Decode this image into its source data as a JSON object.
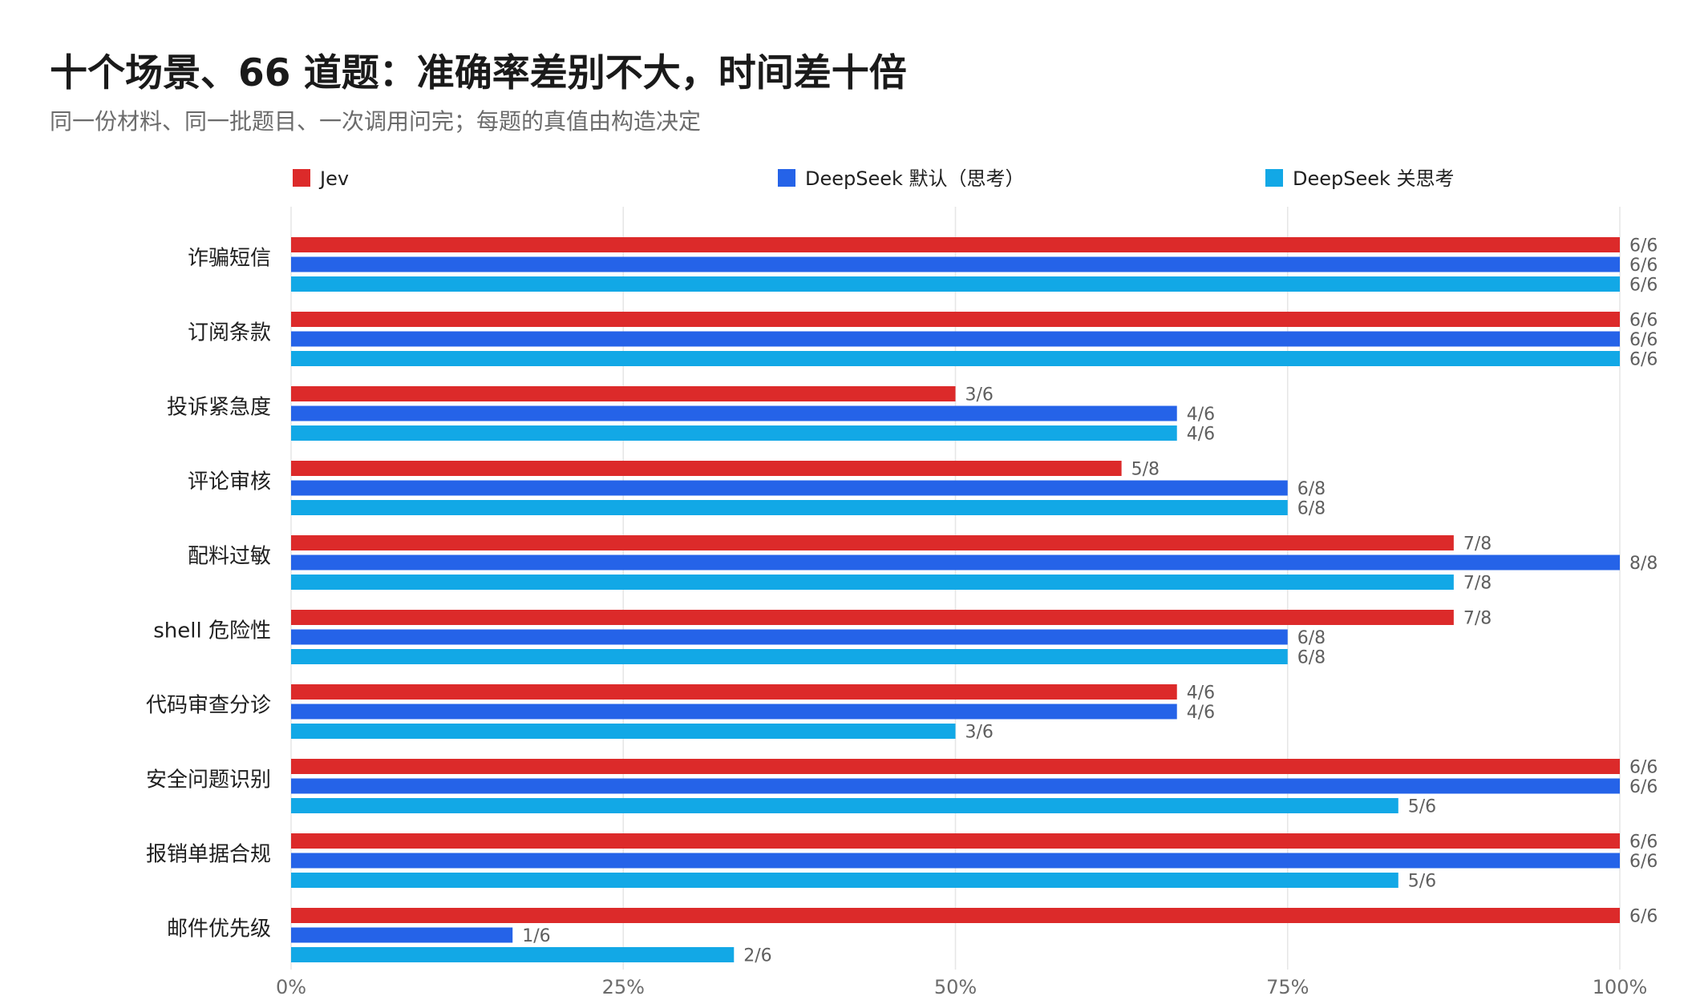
{
  "title": "十个场景、66 道题：准确率差别不大，时间差十倍",
  "subtitle": "同一份材料、同一批题目、一次调用问完；每题的真值由构造决定",
  "chart_data": {
    "type": "bar",
    "orientation": "horizontal",
    "title": "十个场景、66 道题：准确率差别不大，时间差十倍",
    "subtitle": "同一份材料、同一批题目、一次调用问完；每题的真值由构造决定",
    "categories": [
      "诈骗短信",
      "订阅条款",
      "投诉紧急度",
      "评论审核",
      "配料过敏",
      "shell 危险性",
      "代码审查分诊",
      "安全问题识别",
      "报销单据合规",
      "邮件优先级"
    ],
    "series": [
      {
        "name": "Jev",
        "color": "#dc2a2a",
        "values": [
          1.0,
          1.0,
          0.5,
          0.625,
          0.875,
          0.875,
          0.6667,
          1.0,
          1.0,
          1.0
        ],
        "labels": [
          "6/6",
          "6/6",
          "3/6",
          "5/8",
          "7/8",
          "7/8",
          "4/6",
          "6/6",
          "6/6",
          "6/6"
        ]
      },
      {
        "name": "DeepSeek 默认（思考）",
        "color": "#2563e8",
        "values": [
          1.0,
          1.0,
          0.6667,
          0.75,
          1.0,
          0.75,
          0.6667,
          1.0,
          1.0,
          0.1667
        ],
        "labels": [
          "6/6",
          "6/6",
          "4/6",
          "6/8",
          "8/8",
          "6/8",
          "4/6",
          "6/6",
          "6/6",
          "1/6"
        ]
      },
      {
        "name": "DeepSeek 关思考",
        "color": "#12a8e6",
        "values": [
          1.0,
          1.0,
          0.6667,
          0.75,
          0.875,
          0.75,
          0.5,
          0.8333,
          0.8333,
          0.3333
        ],
        "labels": [
          "6/6",
          "6/6",
          "4/6",
          "6/8",
          "7/8",
          "6/8",
          "3/6",
          "5/6",
          "5/6",
          "2/6"
        ]
      }
    ],
    "xlim": [
      0,
      1
    ],
    "x_ticks": [
      "0%",
      "25%",
      "50%",
      "75%",
      "100%"
    ],
    "grid": true,
    "legend_position": "top"
  }
}
